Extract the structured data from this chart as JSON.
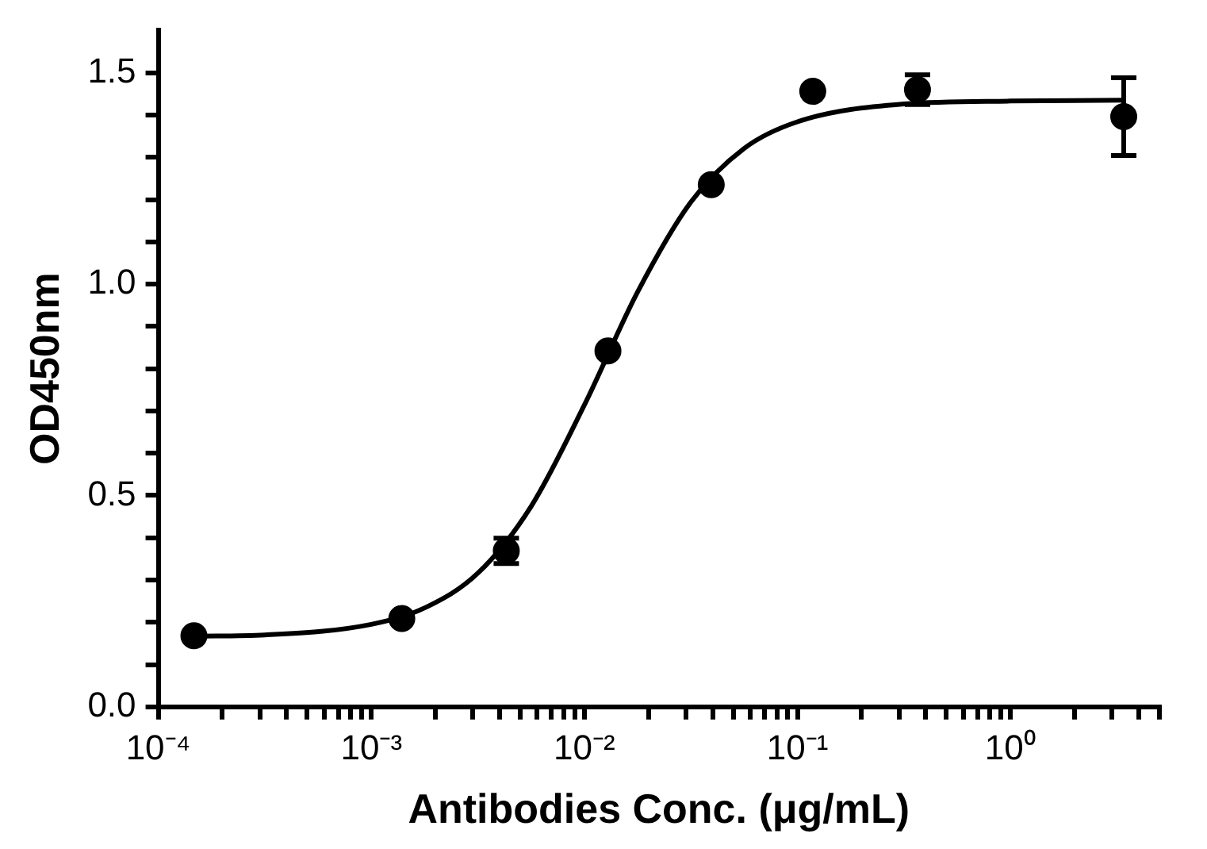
{
  "chart_data": {
    "type": "scatter",
    "xlabel": "Antibodies Conc. (μg/mL)",
    "ylabel": "OD450nm",
    "log": "x",
    "grid": false,
    "legend": false,
    "xlim": [
      0.0001,
      5
    ],
    "xticks": [
      {
        "value": 0.0001,
        "label": "10⁻⁴"
      },
      {
        "value": 0.0002,
        "label": null
      },
      {
        "value": 0.0003,
        "label": null
      },
      {
        "value": 0.0004,
        "label": null
      },
      {
        "value": 0.0005,
        "label": null
      },
      {
        "value": 0.0006,
        "label": null
      },
      {
        "value": 0.0007,
        "label": null
      },
      {
        "value": 0.0008,
        "label": null
      },
      {
        "value": 0.0009,
        "label": null
      },
      {
        "value": 0.001,
        "label": "10⁻³"
      },
      {
        "value": 0.002,
        "label": null
      },
      {
        "value": 0.003,
        "label": null
      },
      {
        "value": 0.004,
        "label": null
      },
      {
        "value": 0.005,
        "label": null
      },
      {
        "value": 0.006,
        "label": null
      },
      {
        "value": 0.007,
        "label": null
      },
      {
        "value": 0.008,
        "label": null
      },
      {
        "value": 0.009,
        "label": null
      },
      {
        "value": 0.01,
        "label": "10⁻²"
      },
      {
        "value": 0.02,
        "label": null
      },
      {
        "value": 0.03,
        "label": null
      },
      {
        "value": 0.04,
        "label": null
      },
      {
        "value": 0.05,
        "label": null
      },
      {
        "value": 0.06,
        "label": null
      },
      {
        "value": 0.07,
        "label": null
      },
      {
        "value": 0.08,
        "label": null
      },
      {
        "value": 0.09,
        "label": null
      },
      {
        "value": 0.1,
        "label": "10⁻¹"
      },
      {
        "value": 0.2,
        "label": null
      },
      {
        "value": 0.3,
        "label": null
      },
      {
        "value": 0.4,
        "label": null
      },
      {
        "value": 0.5,
        "label": null
      },
      {
        "value": 0.6,
        "label": null
      },
      {
        "value": 0.7,
        "label": null
      },
      {
        "value": 0.8,
        "label": null
      },
      {
        "value": 0.9,
        "label": null
      },
      {
        "value": 1,
        "label": "10⁰"
      },
      {
        "value": 2,
        "label": null
      },
      {
        "value": 3,
        "label": null
      },
      {
        "value": 4,
        "label": null
      },
      {
        "value": 5,
        "label": null
      }
    ],
    "ylim": [
      0,
      1.6
    ],
    "yticks": [
      {
        "value": 0,
        "label": "0.0"
      },
      {
        "value": 0.1,
        "label": null
      },
      {
        "value": 0.2,
        "label": null
      },
      {
        "value": 0.3,
        "label": null
      },
      {
        "value": 0.4,
        "label": null
      },
      {
        "value": 0.5,
        "label": "0.5"
      },
      {
        "value": 0.6,
        "label": null
      },
      {
        "value": 0.7,
        "label": null
      },
      {
        "value": 0.8,
        "label": null
      },
      {
        "value": 0.9,
        "label": null
      },
      {
        "value": 1,
        "label": "1.0"
      },
      {
        "value": 1.1,
        "label": null
      },
      {
        "value": 1.2,
        "label": null
      },
      {
        "value": 1.3,
        "label": null
      },
      {
        "value": 1.4,
        "label": null
      },
      {
        "value": 1.5,
        "label": "1.5"
      }
    ],
    "series": [
      {
        "color": "#000000",
        "marker": "circle",
        "x": [
          0.000147,
          0.00139,
          0.0043,
          0.0129,
          0.0394,
          0.118,
          0.366,
          3.4
        ],
        "values": [
          0.168,
          0.209,
          0.369,
          0.842,
          1.235,
          1.456,
          1.46,
          1.396
        ],
        "errors": [
          null,
          null,
          0.03,
          null,
          null,
          null,
          0.035,
          0.092
        ]
      },
      {
        "type": "line",
        "color": "#000000",
        "marker": "none",
        "line_style": "solid",
        "x": [
          0.000147,
          0.000316,
          0.001,
          0.00178,
          0.00316,
          0.00562,
          0.01,
          0.0178,
          0.0316,
          0.0562,
          0.1,
          0.316,
          1,
          3.4
        ],
        "values": [
          0.167,
          0.17,
          0.195,
          0.234,
          0.316,
          0.474,
          0.714,
          0.982,
          1.194,
          1.321,
          1.384,
          1.426,
          1.433,
          1.435
        ]
      }
    ]
  }
}
